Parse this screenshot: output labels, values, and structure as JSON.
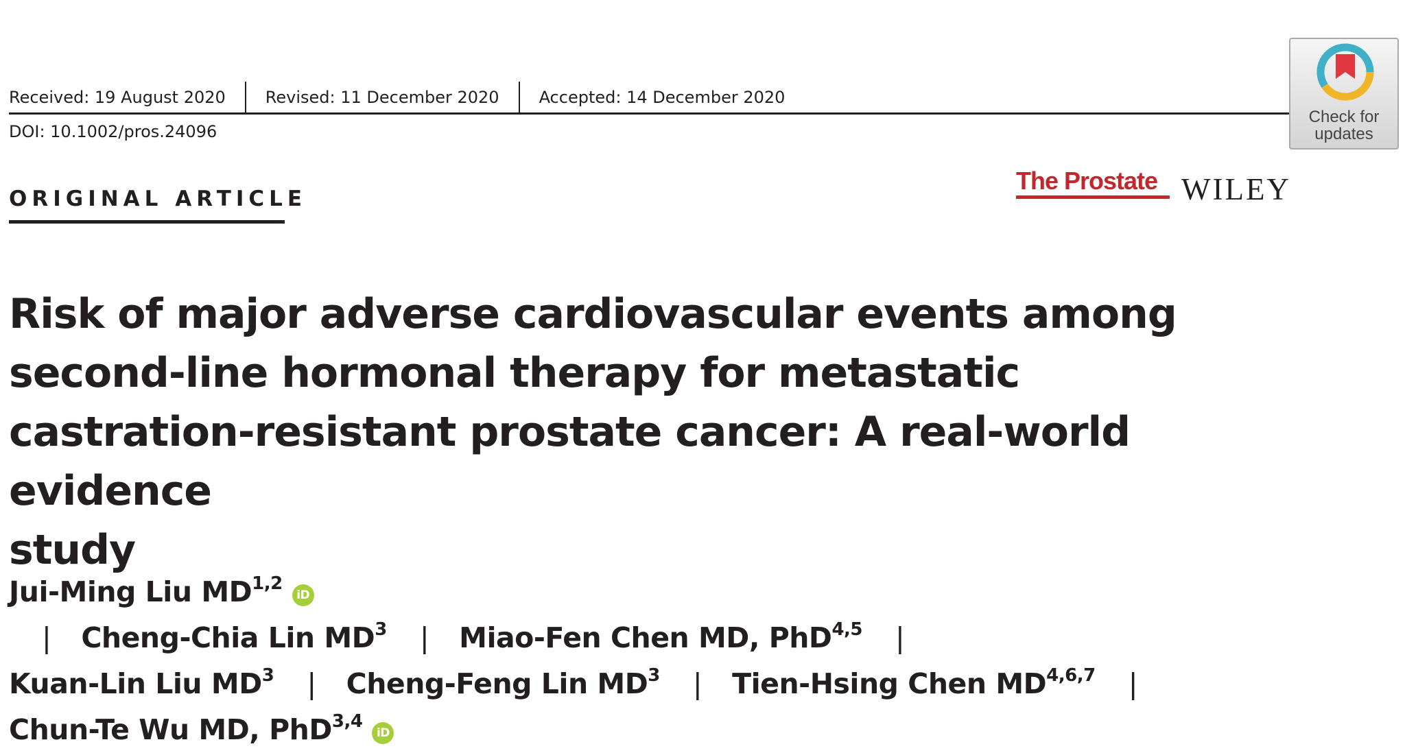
{
  "dates": {
    "received": "Received: 19 August 2020",
    "revised": "Revised: 11 December 2020",
    "accepted": "Accepted: 14 December 2020"
  },
  "doi": "DOI: 10.1002/pros.24096",
  "crossmark": {
    "line1": "Check for",
    "line2": "updates"
  },
  "article_type": "ORIGINAL ARTICLE",
  "journal": {
    "name": "The Prostate",
    "publisher": "WILEY",
    "color": "#c1272d"
  },
  "title": {
    "line1": "Risk of major adverse cardiovascular events among",
    "line2": "second-line hormonal therapy for metastatic",
    "line3": "castration-resistant prostate cancer: A real-world evidence",
    "line4": "study"
  },
  "authors": [
    {
      "name": "Jui-Ming Liu MD",
      "aff": "1,2"
    },
    {
      "name": "Cheng-Chia Lin MD",
      "aff": "3"
    },
    {
      "name": "Miao-Fen Chen MD, PhD",
      "aff": "4,5"
    },
    {
      "name": "Kuan-Lin Liu MD",
      "aff": "3"
    },
    {
      "name": "Cheng-Feng Lin MD",
      "aff": "3"
    },
    {
      "name": "Tien-Hsing Chen MD",
      "aff": "4,6,7"
    },
    {
      "name": "Chun-Te Wu MD, PhD",
      "aff": "3,4"
    }
  ],
  "author_separator": "|",
  "orcid_glyph": "iD",
  "orcid_color": "#a6ce39"
}
